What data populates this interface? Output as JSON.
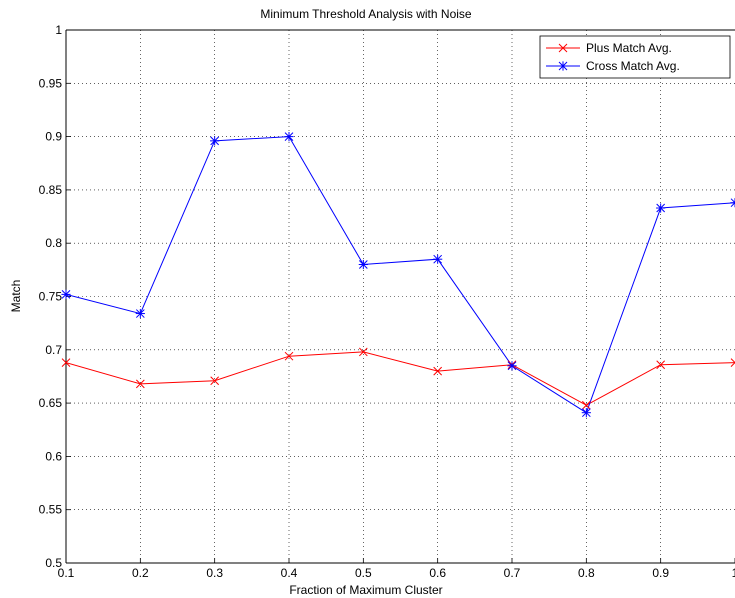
{
  "chart_data": {
    "type": "line",
    "title": "Minimum Threshold Analysis with Noise",
    "xlabel": "Fraction of Maximum Cluster",
    "ylabel": "Match",
    "xlim": [
      0.1,
      1
    ],
    "ylim": [
      0.5,
      1
    ],
    "x_ticks": [
      "0.1",
      "0.2",
      "0.3",
      "0.4",
      "0.5",
      "0.6",
      "0.7",
      "0.8",
      "0.9",
      "1"
    ],
    "y_ticks": [
      "0.5",
      "0.55",
      "0.6",
      "0.65",
      "0.7",
      "0.75",
      "0.8",
      "0.85",
      "0.9",
      "0.95",
      "1"
    ],
    "grid": true,
    "legend_position": "top-right",
    "x": [
      0.1,
      0.2,
      0.3,
      0.4,
      0.5,
      0.6,
      0.7,
      0.8,
      0.9,
      1.0
    ],
    "series": [
      {
        "name": "Plus Match Avg.",
        "color": "#ff0000",
        "marker": "x",
        "values": [
          0.688,
          0.668,
          0.671,
          0.694,
          0.698,
          0.68,
          0.686,
          0.648,
          0.686,
          0.688
        ]
      },
      {
        "name": "Cross Match Avg.",
        "color": "#0000ff",
        "marker": "asterisk",
        "values": [
          0.752,
          0.734,
          0.896,
          0.9,
          0.78,
          0.785,
          0.685,
          0.641,
          0.833,
          0.838
        ]
      }
    ]
  }
}
